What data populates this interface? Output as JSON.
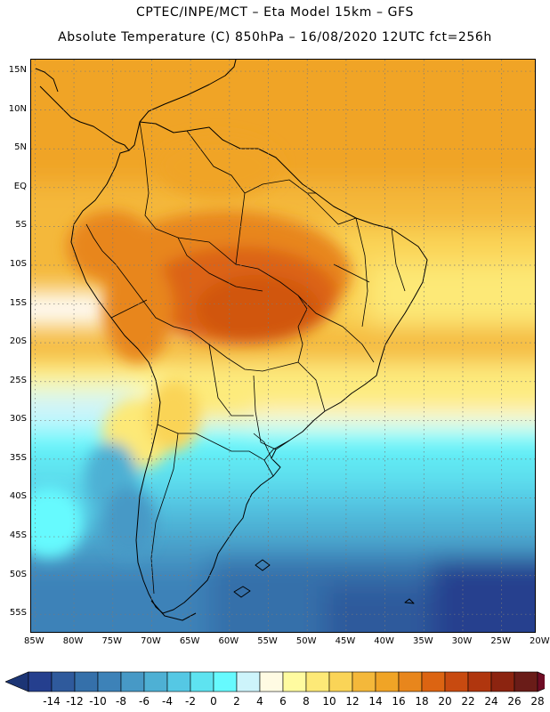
{
  "title": {
    "line1": "CPTEC/INPE/MCT –  Eta Model 15km – GFS",
    "line2": "Absolute Temperature (C) 850hPa – 16/08/2020 12UTC fct=256h"
  },
  "map": {
    "variable": "Absolute Temperature",
    "units": "C",
    "level": "850hPa",
    "lat_labels": [
      "15N",
      "10N",
      "5N",
      "EQ",
      "5S",
      "10S",
      "15S",
      "20S",
      "25S",
      "30S",
      "35S",
      "40S",
      "45S",
      "50S",
      "55S"
    ],
    "lon_labels": [
      "85W",
      "80W",
      "75W",
      "70W",
      "65W",
      "60W",
      "55W",
      "50W",
      "45W",
      "40W",
      "35W",
      "30W",
      "25W",
      "20W"
    ],
    "lat_range": [
      -57.5,
      16.5
    ],
    "lon_range": [
      -85.5,
      -20.5
    ]
  },
  "colorbar": {
    "labels": [
      "-14",
      "-12",
      "-10",
      "-8",
      "-6",
      "-4",
      "-2",
      "0",
      "2",
      "4",
      "6",
      "8",
      "10",
      "12",
      "14",
      "16",
      "18",
      "20",
      "22",
      "24",
      "26",
      "28"
    ],
    "colors": [
      "#253f8e",
      "#2f5a9c",
      "#3570aa",
      "#3d82b8",
      "#4799c6",
      "#4eb0d4",
      "#55c8e4",
      "#5ee3f0",
      "#66fafe",
      "#cdf4fb",
      "#fffbe3",
      "#fffba0",
      "#fde977",
      "#fad457",
      "#f4b83a",
      "#f0a426",
      "#e8861c",
      "#dc6412",
      "#c84a10",
      "#b0360e",
      "#8c2410",
      "#6a1c18"
    ],
    "low_end_color": "#1c3575",
    "high_end_color": "#6e0c24"
  }
}
